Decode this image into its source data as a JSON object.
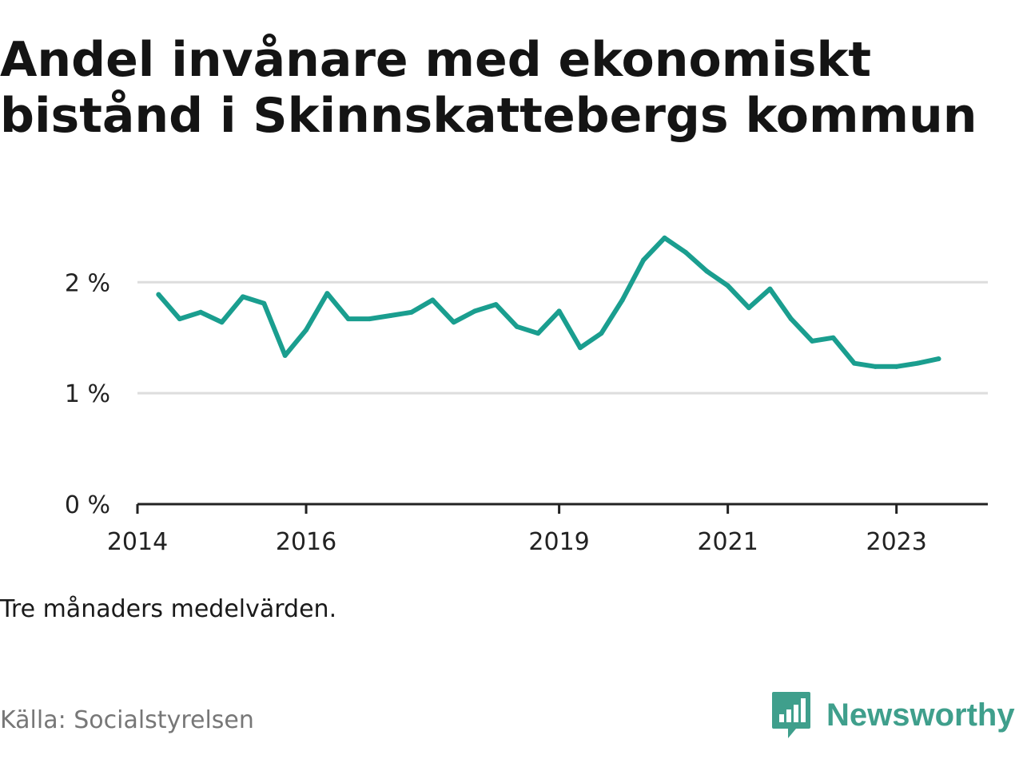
{
  "title": "Andel invånare med ekonomiskt bistånd i Skinnskattebergs kommun",
  "note": "Tre månaders medelvärden.",
  "source": "Källa: Socialstyrelsen",
  "brand": {
    "name": "Newsworthy",
    "icon": "newsworthy-logo-icon",
    "color": "#3f9f8c"
  },
  "colors": {
    "line": "#1a9e8f",
    "grid": "#dddddd",
    "axis": "#222222"
  },
  "chart_data": {
    "type": "line",
    "title": "Andel invånare med ekonomiskt bistånd i Skinnskattebergs kommun",
    "xlabel": "",
    "ylabel": "",
    "ylim": [
      0,
      2.6
    ],
    "xlim": [
      "2014-01",
      "2024-02"
    ],
    "grid": true,
    "y_ticks": [
      {
        "value": 0,
        "label": "0 %"
      },
      {
        "value": 1,
        "label": "1 %"
      },
      {
        "value": 2,
        "label": "2 %"
      }
    ],
    "x_ticks": [
      {
        "value": "2014-01",
        "label": "2014"
      },
      {
        "value": "2016-01",
        "label": "2016"
      },
      {
        "value": "2019-01",
        "label": "2019"
      },
      {
        "value": "2021-01",
        "label": "2021"
      },
      {
        "value": "2023-01",
        "label": "2023"
      }
    ],
    "series": [
      {
        "x": [
          "2014-04",
          "2014-07",
          "2014-10",
          "2015-01",
          "2015-04",
          "2015-07",
          "2015-10",
          "2016-01",
          "2016-04",
          "2016-07",
          "2016-10",
          "2017-01",
          "2017-04",
          "2017-07",
          "2017-10",
          "2018-01",
          "2018-04",
          "2018-07",
          "2018-10",
          "2019-01",
          "2019-04",
          "2019-07",
          "2019-10",
          "2020-01",
          "2020-04",
          "2020-07",
          "2020-10",
          "2021-01",
          "2021-04",
          "2021-07",
          "2021-10",
          "2022-01",
          "2022-04",
          "2022-07",
          "2022-10",
          "2023-01",
          "2023-04",
          "2023-07"
        ],
        "values": [
          1.89,
          1.67,
          1.73,
          1.64,
          1.87,
          1.81,
          1.34,
          1.57,
          1.9,
          1.67,
          1.67,
          1.7,
          1.73,
          1.84,
          1.64,
          1.74,
          1.8,
          1.6,
          1.54,
          1.74,
          1.41,
          1.54,
          1.84,
          2.2,
          2.4,
          2.27,
          2.1,
          1.97,
          1.77,
          1.94,
          1.67,
          1.47,
          1.5,
          1.27,
          1.24,
          1.24,
          1.27,
          1.31
        ]
      }
    ]
  }
}
